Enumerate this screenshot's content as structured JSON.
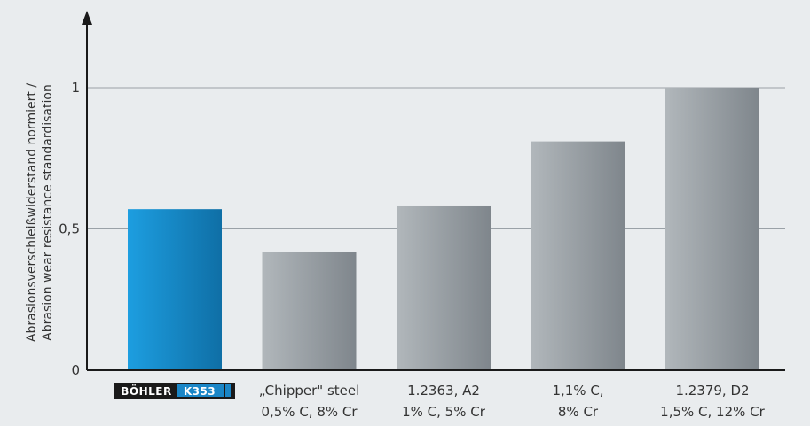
{
  "chart_data": {
    "type": "bar",
    "ylabel_lines": [
      "Abrasionsverschleißwiderstand normiert /",
      "Abrasion wear resistance standardisation"
    ],
    "ylim": [
      0,
      1
    ],
    "yticks": [
      "0",
      "0,5",
      "1"
    ],
    "ytick_values": [
      0,
      0.5,
      1
    ],
    "grid": true,
    "categories": [
      {
        "brand": {
          "name": "BÖHLER",
          "product": "K353"
        },
        "lines": []
      },
      {
        "lines": [
          "„Chipper\" steel",
          "0,5% C, 8% Cr"
        ]
      },
      {
        "lines": [
          "1.2363, A2",
          "1% C, 5% Cr"
        ]
      },
      {
        "lines": [
          "1,1% C,",
          "8% Cr"
        ]
      },
      {
        "lines": [
          "1.2379, D2",
          "1,5% C, 12% Cr"
        ]
      }
    ],
    "values": [
      0.57,
      0.42,
      0.58,
      0.81,
      1.0
    ],
    "highlight_index": 0
  },
  "colors": {
    "background": "#e9ecee",
    "highlight_bar": "#1a86c7",
    "bar": "#9ba2a8",
    "axis": "#1a1a1a",
    "grid": "#9aa1a7",
    "brand_dark": "#1a1a1a",
    "brand_blue": "#1a86c7"
  }
}
